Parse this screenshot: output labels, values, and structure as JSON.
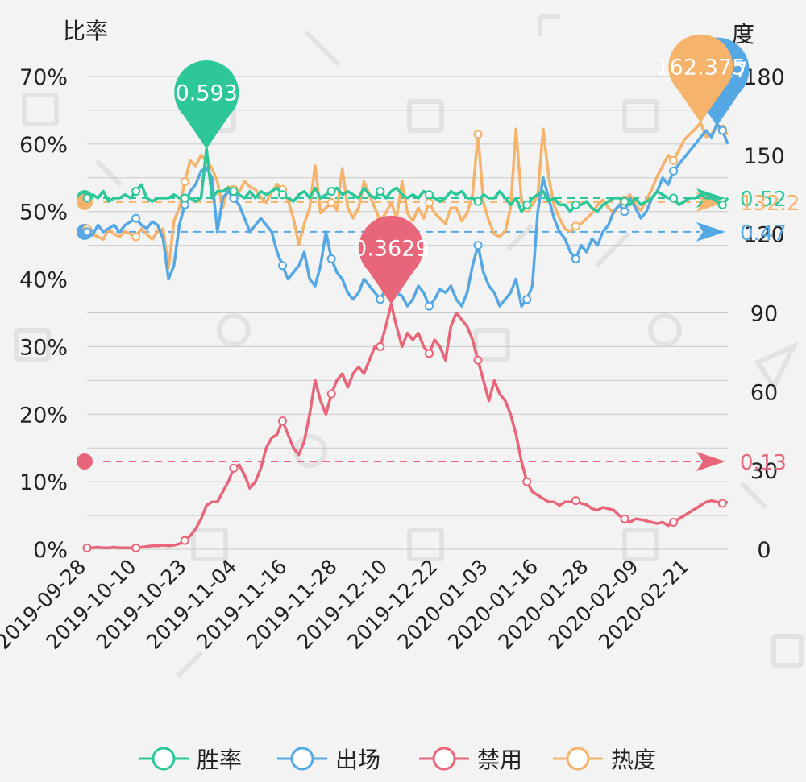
{
  "chart_data": {
    "type": "line",
    "left_axis": {
      "title": "比率",
      "ticks": [
        "0%",
        "10%",
        "20%",
        "30%",
        "40%",
        "50%",
        "60%",
        "70%"
      ],
      "range": [
        0,
        0.7
      ]
    },
    "right_axis": {
      "title": "度",
      "ticks": [
        "0",
        "30",
        "60",
        "90",
        "120",
        "150",
        "180"
      ],
      "range": [
        0,
        180
      ]
    },
    "x_ticks": [
      "2019-09-28",
      "2019-10-10",
      "2019-10-23",
      "2019-11-04",
      "2019-11-16",
      "2019-11-28",
      "2019-12-10",
      "2019-12-22",
      "2020-01-03",
      "2020-01-16",
      "2020-01-28",
      "2020-02-09",
      "2020-02-21"
    ],
    "grid": true,
    "legend_position": "bottom",
    "series": [
      {
        "name": "胜率",
        "color": "#2ec79a",
        "axis": "left",
        "values": [
          0.52,
          0.525,
          0.52,
          0.53,
          0.515,
          0.52,
          0.52,
          0.525,
          0.52,
          0.53,
          0.54,
          0.52,
          0.515,
          0.52,
          0.52,
          0.52,
          0.525,
          0.52,
          0.52,
          0.52,
          0.515,
          0.52,
          0.593,
          0.52,
          0.53,
          0.53,
          0.535,
          0.53,
          0.525,
          0.52,
          0.53,
          0.52,
          0.53,
          0.525,
          0.53,
          0.535,
          0.525,
          0.52,
          0.515,
          0.525,
          0.53,
          0.52,
          0.535,
          0.52,
          0.525,
          0.53,
          0.535,
          0.525,
          0.53,
          0.525,
          0.52,
          0.535,
          0.525,
          0.52,
          0.53,
          0.52,
          0.53,
          0.535,
          0.525,
          0.52,
          0.525,
          0.52,
          0.53,
          0.525,
          0.52,
          0.515,
          0.52,
          0.53,
          0.525,
          0.53,
          0.52,
          0.52,
          0.515,
          0.525,
          0.52,
          0.52,
          0.53,
          0.52,
          0.51,
          0.52,
          0.5,
          0.51,
          0.52,
          0.525,
          0.53,
          0.515,
          0.52,
          0.51,
          0.51,
          0.5,
          0.51,
          0.51,
          0.515,
          0.505,
          0.5,
          0.51,
          0.515,
          0.52,
          0.52,
          0.515,
          0.51,
          0.52,
          0.51,
          0.515,
          0.52,
          0.53,
          0.525,
          0.52,
          0.52,
          0.51,
          0.515,
          0.52,
          0.52,
          0.525,
          0.52,
          0.52,
          0.515,
          0.51,
          0.52
        ]
      },
      {
        "name": "出场",
        "color": "#55a8e4",
        "axis": "left",
        "values": [
          0.47,
          0.465,
          0.48,
          0.47,
          0.475,
          0.48,
          0.47,
          0.48,
          0.485,
          0.49,
          0.48,
          0.475,
          0.485,
          0.48,
          0.46,
          0.4,
          0.42,
          0.48,
          0.51,
          0.53,
          0.54,
          0.56,
          0.565,
          0.55,
          0.47,
          0.52,
          0.53,
          0.52,
          0.51,
          0.49,
          0.47,
          0.48,
          0.49,
          0.48,
          0.47,
          0.44,
          0.42,
          0.4,
          0.41,
          0.42,
          0.44,
          0.4,
          0.39,
          0.42,
          0.47,
          0.43,
          0.41,
          0.4,
          0.38,
          0.37,
          0.38,
          0.4,
          0.39,
          0.38,
          0.37,
          0.385,
          0.39,
          0.38,
          0.375,
          0.36,
          0.37,
          0.39,
          0.38,
          0.36,
          0.37,
          0.385,
          0.38,
          0.39,
          0.37,
          0.36,
          0.38,
          0.42,
          0.45,
          0.41,
          0.39,
          0.38,
          0.36,
          0.37,
          0.38,
          0.4,
          0.36,
          0.37,
          0.39,
          0.5,
          0.55,
          0.52,
          0.49,
          0.47,
          0.46,
          0.44,
          0.43,
          0.45,
          0.44,
          0.46,
          0.45,
          0.47,
          0.48,
          0.5,
          0.51,
          0.5,
          0.52,
          0.505,
          0.49,
          0.5,
          0.52,
          0.53,
          0.55,
          0.54,
          0.56,
          0.57,
          0.58,
          0.59,
          0.6,
          0.61,
          0.62,
          0.61,
          0.63,
          0.62,
          0.6
        ]
      },
      {
        "name": "禁用",
        "color": "#e8667a",
        "axis": "left",
        "values": [
          0.002,
          0.002,
          0.003,
          0.002,
          0.002,
          0.003,
          0.002,
          0.002,
          0.002,
          0.002,
          0.003,
          0.004,
          0.005,
          0.005,
          0.006,
          0.005,
          0.006,
          0.008,
          0.013,
          0.02,
          0.03,
          0.045,
          0.065,
          0.07,
          0.07,
          0.085,
          0.1,
          0.12,
          0.125,
          0.11,
          0.09,
          0.1,
          0.12,
          0.15,
          0.165,
          0.17,
          0.19,
          0.17,
          0.15,
          0.14,
          0.16,
          0.2,
          0.25,
          0.22,
          0.2,
          0.23,
          0.25,
          0.26,
          0.24,
          0.26,
          0.27,
          0.26,
          0.28,
          0.3,
          0.3,
          0.33,
          0.3629,
          0.33,
          0.3,
          0.32,
          0.31,
          0.32,
          0.3,
          0.29,
          0.31,
          0.3,
          0.28,
          0.33,
          0.35,
          0.34,
          0.33,
          0.31,
          0.28,
          0.25,
          0.22,
          0.25,
          0.23,
          0.22,
          0.2,
          0.17,
          0.13,
          0.1,
          0.085,
          0.08,
          0.075,
          0.07,
          0.07,
          0.065,
          0.07,
          0.07,
          0.072,
          0.068,
          0.066,
          0.06,
          0.058,
          0.062,
          0.06,
          0.058,
          0.05,
          0.045,
          0.04,
          0.045,
          0.044,
          0.042,
          0.04,
          0.038,
          0.04,
          0.035,
          0.04,
          0.045,
          0.05,
          0.055,
          0.06,
          0.065,
          0.07,
          0.072,
          0.07,
          0.068,
          0.07
        ]
      },
      {
        "name": "热度",
        "color": "#f5b36c",
        "axis": "right",
        "values": [
          122,
          120,
          119,
          118,
          122,
          120,
          119,
          121,
          120,
          119,
          122,
          120,
          118,
          121,
          122,
          107,
          125,
          130,
          140,
          148,
          146,
          150,
          148,
          145,
          140,
          130,
          138,
          137,
          136,
          140,
          138,
          137,
          134,
          132,
          136,
          139,
          137,
          133,
          126,
          116,
          124,
          130,
          146,
          128,
          130,
          132,
          129,
          145,
          130,
          126,
          130,
          140,
          135,
          130,
          125,
          128,
          132,
          126,
          140,
          128,
          125,
          130,
          126,
          132,
          128,
          126,
          124,
          130,
          130,
          125,
          128,
          135,
          158,
          132,
          125,
          120,
          119,
          121,
          130,
          160,
          133,
          130,
          131,
          135,
          160,
          142,
          131,
          126,
          122,
          121,
          123,
          124,
          126,
          128,
          131,
          133,
          130,
          128,
          131,
          133,
          135,
          131,
          129,
          133,
          137,
          142,
          146,
          150,
          148,
          152,
          156,
          158,
          160,
          162.375,
          157,
          158,
          161,
          160,
          158
        ]
      }
    ],
    "reference_lines": [
      {
        "series": "胜率",
        "value": 0.52,
        "label": "0.52"
      },
      {
        "series": "出场",
        "value": 0.47,
        "label": "0.47"
      },
      {
        "series": "禁用",
        "value": 0.13,
        "label": "0.13"
      },
      {
        "series": "热度",
        "value": 132.2,
        "label": "132.2"
      }
    ],
    "peak_markers": [
      {
        "series": "胜率",
        "value": 0.593,
        "label": "0.593"
      },
      {
        "series": "禁用",
        "value": 0.3629,
        "label": "0.3629"
      },
      {
        "series": "出场",
        "value": 0.627,
        "label": "0.627"
      },
      {
        "series": "热度",
        "value": 162.375,
        "label": "162.375"
      }
    ]
  }
}
